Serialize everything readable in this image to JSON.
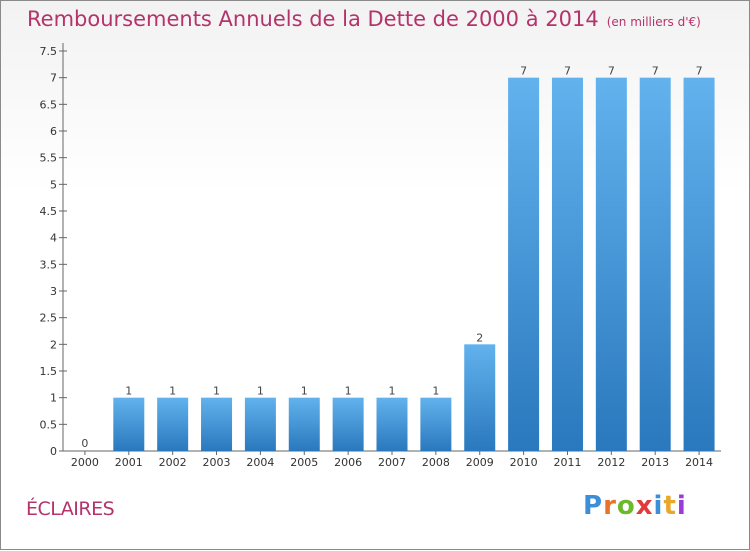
{
  "page": {
    "title": "Remboursements Annuels de la Dette de 2000 à 2014",
    "unit": "(en milliers d'€)",
    "commune": "ÉCLAIRES",
    "brand_letters": [
      "P",
      "r",
      "o",
      "x",
      "i",
      "t",
      "i"
    ],
    "brand_colors": [
      "#3a8fd8",
      "#e8742c",
      "#6cb82e",
      "#e23a3a",
      "#3a8fd8",
      "#e8a82c",
      "#9a3ad8"
    ]
  },
  "colors": {
    "bar_top": "#62b2ee",
    "bar_bottom": "#2a78bd",
    "text_accent": "#b5336b"
  },
  "chart_data": {
    "type": "bar",
    "title": "Remboursements Annuels de la Dette de 2000 à 2014",
    "subtitle": "(en milliers d'€)",
    "xlabel": "",
    "ylabel": "",
    "categories": [
      "2000",
      "2001",
      "2002",
      "2003",
      "2004",
      "2005",
      "2006",
      "2007",
      "2008",
      "2009",
      "2010",
      "2011",
      "2012",
      "2013",
      "2014"
    ],
    "values": [
      0,
      1,
      1,
      1,
      1,
      1,
      1,
      1,
      1,
      2,
      7,
      7,
      7,
      7,
      7
    ],
    "value_labels": [
      "0",
      "1",
      "1",
      "1",
      "1",
      "1",
      "1",
      "1",
      "1",
      "2",
      "7",
      "7",
      "7",
      "7",
      "7"
    ],
    "yticks": [
      "0",
      "0.5",
      "1",
      "1.5",
      "2",
      "2.5",
      "3",
      "3.5",
      "4",
      "4.5",
      "5",
      "5.5",
      "6",
      "6.5",
      "7",
      "7.5"
    ],
    "ytick_values": [
      0,
      0.5,
      1,
      1.5,
      2,
      2.5,
      3,
      3.5,
      4,
      4.5,
      5,
      5.5,
      6,
      6.5,
      7,
      7.5
    ],
    "ylim": [
      0,
      7.5
    ],
    "grid": false,
    "legend": "none"
  }
}
